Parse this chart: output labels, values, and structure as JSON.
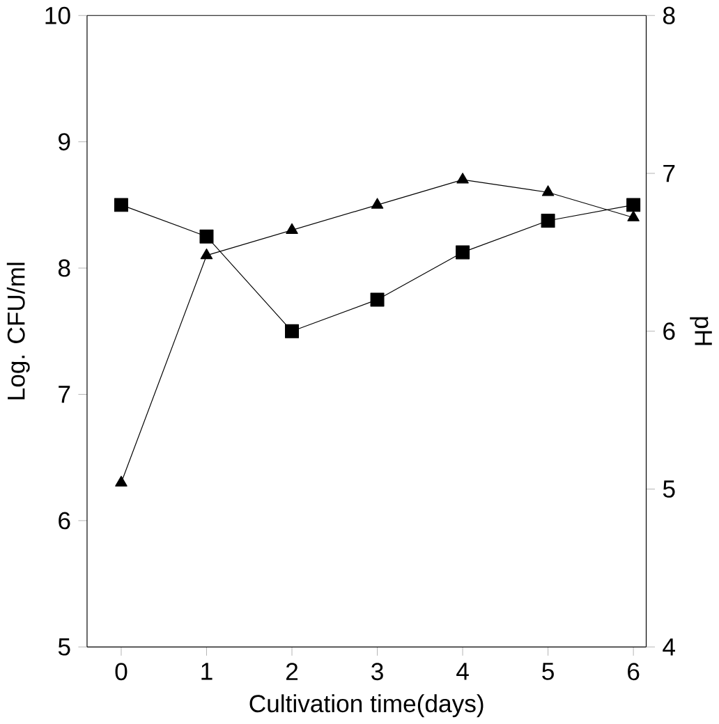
{
  "chart_data": {
    "type": "line",
    "xlabel": "Cultivation time(days)",
    "ylabel": "Log. CFU/ml",
    "y2label": "pH",
    "x": [
      0,
      1,
      2,
      3,
      4,
      5,
      6
    ],
    "series": [
      {
        "color": "#000000",
        "marker": "triangle",
        "values": [
          6.3,
          8.1,
          8.3,
          8.5,
          8.7,
          8.6,
          8.4
        ]
      },
      {
        "color": "#000000",
        "marker": "square",
        "axis": "y2",
        "values": [
          6.8,
          6.6,
          6.0,
          6.2,
          6.5,
          6.7,
          6.8
        ]
      }
    ],
    "xlim": [
      -0.4,
      6.15
    ],
    "xticks": [
      0,
      1,
      2,
      3,
      4,
      5,
      6
    ],
    "ylim": [
      5,
      10
    ],
    "yticks": [
      5,
      6,
      7,
      8,
      9,
      10
    ],
    "y2lim": [
      4,
      8
    ],
    "y2ticks": [
      4,
      5,
      6,
      7,
      8
    ],
    "line_style": "solid"
  }
}
